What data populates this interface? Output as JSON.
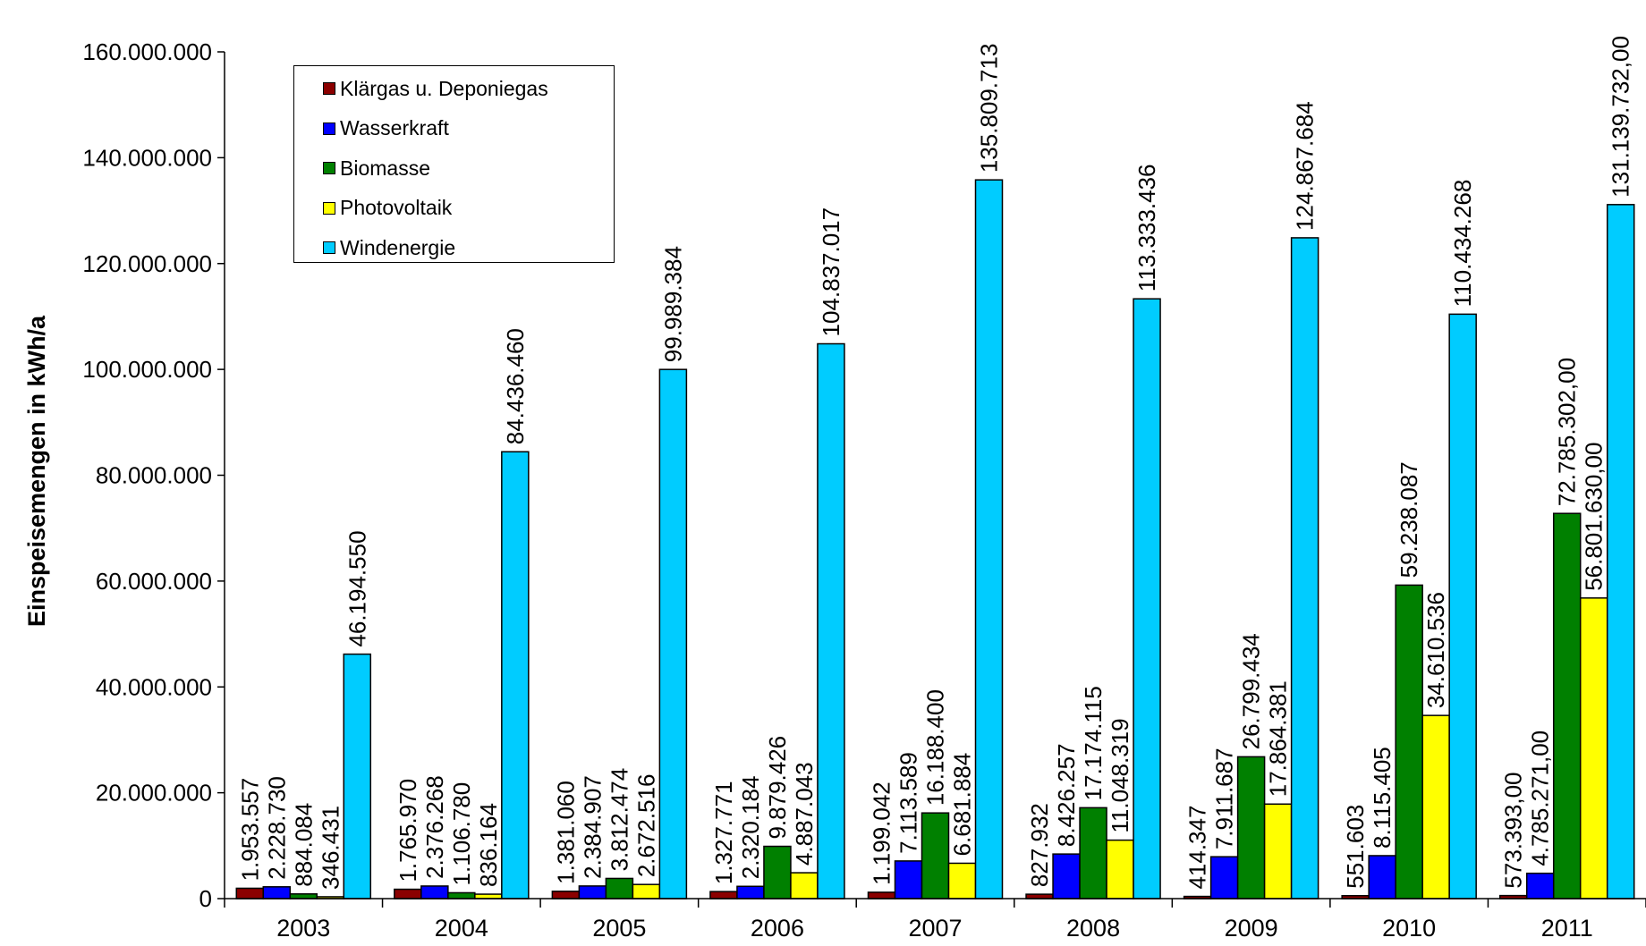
{
  "chart_data": {
    "type": "bar",
    "title": "",
    "xlabel": "",
    "ylabel": "Einspeisemengen in kWh/a",
    "ylim": [
      0,
      160000000
    ],
    "yticks": [
      "0",
      "20.000.000",
      "40.000.000",
      "60.000.000",
      "80.000.000",
      "100.000.000",
      "120.000.000",
      "140.000.000",
      "160.000.000"
    ],
    "categories": [
      "2003",
      "2004",
      "2005",
      "2006",
      "2007",
      "2008",
      "2009",
      "2010",
      "2011"
    ],
    "legend_position": "top-left",
    "series": [
      {
        "name": "Klärgas u. Deponiegas",
        "color": "#8B0000",
        "values": [
          1953557,
          1765970,
          1381060,
          1327771,
          1199042,
          827932,
          414347,
          551603,
          573393
        ],
        "labels": [
          "1.953.557",
          "1.765.970",
          "1.381.060",
          "1.327.771",
          "1.199.042",
          "827.932",
          "414.347",
          "551.603",
          "573.393,00"
        ]
      },
      {
        "name": "Wasserkraft",
        "color": "#0000FF",
        "values": [
          2228730,
          2376268,
          2384907,
          2320184,
          7113589,
          8426257,
          7911687,
          8115405,
          4785271
        ],
        "labels": [
          "2.228.730",
          "2.376.268",
          "2.384.907",
          "2.320.184",
          "7.113.589",
          "8.426.257",
          "7.911.687",
          "8.115.405",
          "4.785.271,00"
        ]
      },
      {
        "name": "Biomasse",
        "color": "#008000",
        "values": [
          884084,
          1106780,
          3812474,
          9879426,
          16188400,
          17174115,
          26799434,
          59238087,
          72785302
        ],
        "labels": [
          "884.084",
          "1.106.780",
          "3.812.474",
          "9.879.426",
          "16.188.400",
          "17.174.115",
          "26.799.434",
          "59.238.087",
          "72.785.302,00"
        ]
      },
      {
        "name": "Photovoltaik",
        "color": "#FFFF00",
        "values": [
          346431,
          836164,
          2672516,
          4887043,
          6681884,
          11048319,
          17864381,
          34610536,
          56801630
        ],
        "labels": [
          "346.431",
          "836.164",
          "2.672.516",
          "4.887.043",
          "6.681.884",
          "11.048.319",
          "17.864.381",
          "34.610.536",
          "56.801.630,00"
        ]
      },
      {
        "name": "Windenergie",
        "color": "#00CCFF",
        "values": [
          46194550,
          84436460,
          99989384,
          104837017,
          135809713,
          113333436,
          124867684,
          110434268,
          131139732
        ],
        "labels": [
          "46.194.550",
          "84.436.460",
          "99.989.384",
          "104.837.017",
          "135.809.713",
          "113.333.436",
          "124.867.684",
          "110.434.268",
          "131.139.732,00"
        ]
      }
    ]
  }
}
